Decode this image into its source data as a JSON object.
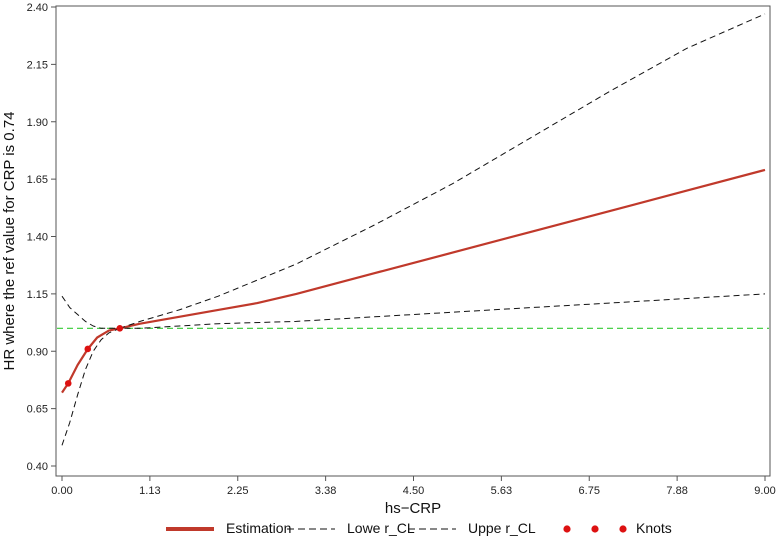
{
  "chart_data": {
    "type": "line",
    "title": "",
    "xlabel": "hs−CRP",
    "ylabel": "HR where the ref value for CRP  is 0.74",
    "xlim": [
      0,
      9.0
    ],
    "ylim": [
      0.4,
      2.4
    ],
    "x_ticks": [
      "0.00",
      "1.13",
      "2.25",
      "3.38",
      "4.50",
      "5.63",
      "6.75",
      "7.88",
      "9.00"
    ],
    "x_tick_values": [
      0,
      1.125,
      2.25,
      3.375,
      4.5,
      5.625,
      6.75,
      7.875,
      9.0
    ],
    "y_ticks": [
      "0.40",
      "0.65",
      "0.90",
      "1.15",
      "1.40",
      "1.65",
      "1.90",
      "2.15",
      "2.40"
    ],
    "y_tick_values": [
      0.4,
      0.65,
      0.9,
      1.15,
      1.4,
      1.65,
      1.9,
      2.15,
      2.4
    ],
    "reference_line": {
      "y": 1.0,
      "color": "#33cc33",
      "style": "dashed"
    },
    "grid": false,
    "legend_position": "bottom",
    "series": [
      {
        "name": "Estimation",
        "style": "solid",
        "color": "#c0392b",
        "x": [
          0.0,
          0.08,
          0.2,
          0.33,
          0.45,
          0.6,
          0.74,
          1.0,
          1.5,
          2.0,
          2.5,
          3.0,
          4.0,
          5.0,
          6.0,
          7.0,
          8.0,
          9.0
        ],
        "y": [
          0.72,
          0.76,
          0.84,
          0.91,
          0.96,
          0.99,
          1.0,
          1.02,
          1.05,
          1.08,
          1.11,
          1.15,
          1.24,
          1.33,
          1.42,
          1.51,
          1.6,
          1.69
        ]
      },
      {
        "name": "Lower_CL",
        "style": "dashed",
        "color": "#111111",
        "x": [
          0.0,
          0.1,
          0.2,
          0.3,
          0.4,
          0.5,
          0.6,
          0.74,
          1.0,
          1.5,
          2.0,
          3.0,
          4.0,
          5.0,
          6.0,
          7.0,
          8.0,
          9.0
        ],
        "y": [
          0.49,
          0.59,
          0.71,
          0.82,
          0.9,
          0.95,
          0.98,
          1.0,
          1.0,
          1.01,
          1.02,
          1.03,
          1.05,
          1.07,
          1.09,
          1.11,
          1.13,
          1.15
        ]
      },
      {
        "name": "Upper_CL",
        "style": "dashed",
        "color": "#111111",
        "x": [
          0.0,
          0.1,
          0.2,
          0.3,
          0.4,
          0.5,
          0.6,
          0.74,
          1.0,
          1.5,
          2.0,
          3.0,
          4.0,
          5.0,
          6.0,
          7.0,
          8.0,
          9.0
        ],
        "y": [
          1.14,
          1.09,
          1.06,
          1.03,
          1.01,
          1.0,
          1.0,
          1.0,
          1.03,
          1.08,
          1.14,
          1.28,
          1.45,
          1.63,
          1.83,
          2.03,
          2.22,
          2.37
        ]
      }
    ],
    "knots": {
      "name": "Knots",
      "color": "#dd1111",
      "x": [
        0.08,
        0.33,
        0.74
      ],
      "y": [
        0.76,
        0.91,
        1.0
      ]
    },
    "legend": [
      {
        "label": "Estimation",
        "kind": "thick-line",
        "color": "#c0392b"
      },
      {
        "label": "Lowe r_CL",
        "kind": "dashed-line",
        "color": "#111111"
      },
      {
        "label": "Uppe r_CL",
        "kind": "dashed-line",
        "color": "#111111"
      },
      {
        "label": "Knots",
        "kind": "dots",
        "color": "#dd1111"
      }
    ]
  }
}
